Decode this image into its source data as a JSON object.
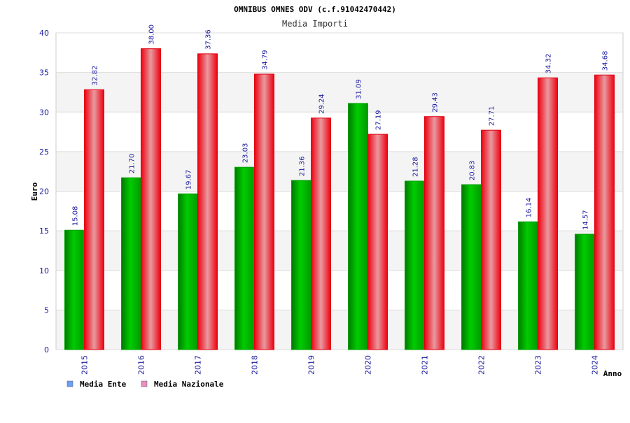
{
  "chart_data": {
    "type": "bar",
    "title": "OMNIBUS OMNES ODV (c.f.91042470442)",
    "subtitle": "Media Importi",
    "ylabel": "Euro",
    "xlabel": "Anno",
    "ylim": [
      0,
      40
    ],
    "yticks": [
      0,
      5,
      10,
      15,
      20,
      25,
      30,
      35,
      40
    ],
    "categories": [
      "2015",
      "2016",
      "2017",
      "2018",
      "2019",
      "2020",
      "2021",
      "2022",
      "2023",
      "2024"
    ],
    "series": [
      {
        "name": "Media Ente",
        "values": [
          15.08,
          21.7,
          19.67,
          23.03,
          21.36,
          31.09,
          21.28,
          20.83,
          16.14,
          14.57
        ],
        "labels": [
          "15.08",
          "21.70",
          "19.67",
          "23.03",
          "21.36",
          "31.09",
          "21.28",
          "20.83",
          "16.14",
          "14.57"
        ],
        "color": "#00b000",
        "legend_color": "#6aa0ff"
      },
      {
        "name": "Media Nazionale",
        "values": [
          32.82,
          38.0,
          37.36,
          34.79,
          29.24,
          27.19,
          29.43,
          27.71,
          34.32,
          34.68
        ],
        "labels": [
          "32.82",
          "38.00",
          "37.36",
          "34.79",
          "29.24",
          "27.19",
          "29.43",
          "27.71",
          "34.32",
          "34.68"
        ],
        "color": "#f01020",
        "legend_color": "#e890c0"
      }
    ],
    "grid": true,
    "legend": "bottom-left"
  }
}
